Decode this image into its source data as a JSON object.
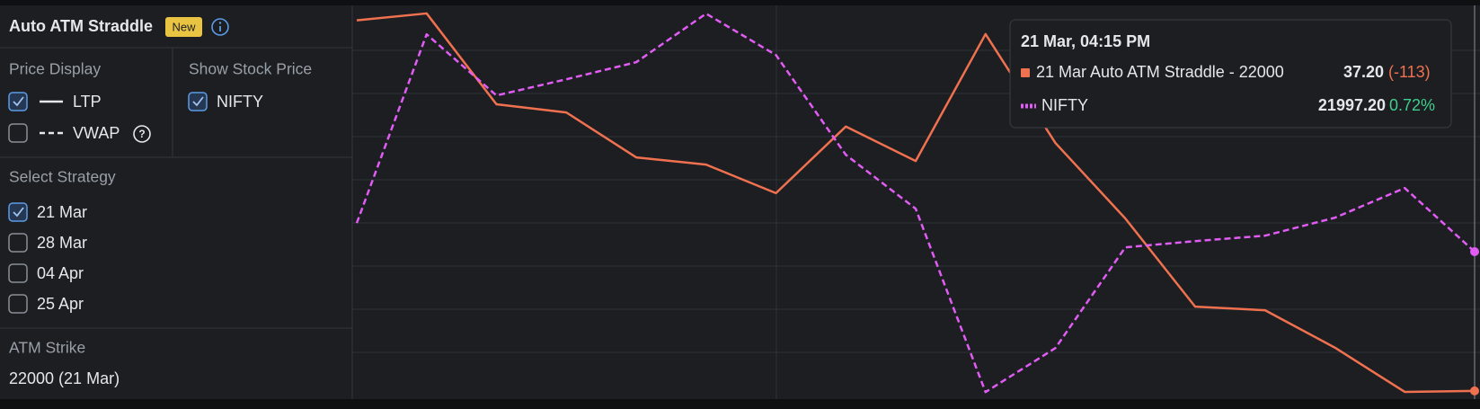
{
  "panel": {
    "title": "Auto ATM Straddle",
    "badge": "New",
    "price_display": {
      "label": "Price Display",
      "options": [
        {
          "label": "LTP",
          "checked": true
        },
        {
          "label": "VWAP",
          "checked": false
        }
      ]
    },
    "stock_price": {
      "label": "Show Stock Price",
      "options": [
        {
          "label": "NIFTY",
          "checked": true
        }
      ]
    },
    "strategy": {
      "label": "Select Strategy",
      "options": [
        {
          "label": "21 Mar",
          "checked": true
        },
        {
          "label": "28 Mar",
          "checked": false
        },
        {
          "label": "04 Apr",
          "checked": false
        },
        {
          "label": "25 Apr",
          "checked": false
        }
      ]
    },
    "atm_strike": {
      "label": "ATM Strike",
      "value": "22000 (21 Mar)"
    }
  },
  "chart_data": {
    "type": "line",
    "categories": [
      null,
      null,
      null,
      null,
      null,
      null,
      null,
      null,
      null,
      null,
      null,
      null,
      null,
      null,
      null,
      null,
      null
    ],
    "ylim": [
      34.7,
      154.2
    ],
    "y2lim": [
      21833.2,
      22269.2
    ],
    "series": [
      {
        "name": "21 Mar Auto ATM Straddle - 22000",
        "color": "#f0714f",
        "dashed": false,
        "values": [
          150.2,
          152.3,
          124.6,
          122.1,
          108.4,
          106.2,
          97.5,
          117.8,
          107.3,
          146.0,
          112.8,
          89.8,
          62.9,
          61.8,
          50.4,
          36.9,
          37.2
        ]
      },
      {
        "name": "NIFTY",
        "color": "#e05cf2",
        "dashed": true,
        "axis": "y2",
        "values": [
          22029,
          22239,
          22171,
          22189,
          22208,
          22262,
          22216,
          22105,
          22045,
          21841,
          21890,
          22002,
          22009,
          22015,
          22035,
          22068,
          21997.2
        ]
      }
    ]
  },
  "tooltip": {
    "time": "21 Mar, 04:15 PM",
    "rows": [
      {
        "price": "37.20",
        "change": "(-113)"
      },
      {
        "price": "21997.20",
        "change": "0.72%"
      }
    ]
  }
}
